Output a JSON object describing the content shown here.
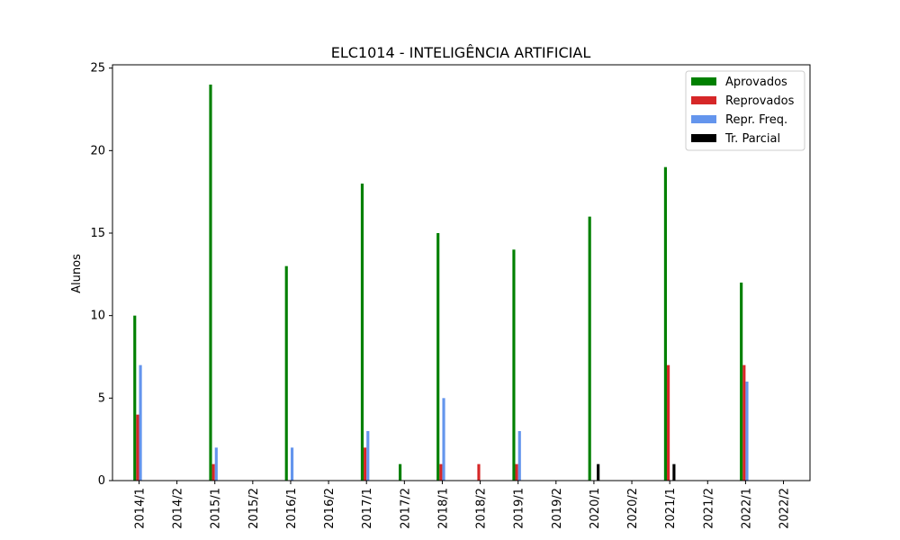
{
  "chart_data": {
    "type": "bar",
    "title": "ELC1014 - INTELIGÊNCIA ARTIFICIAL",
    "xlabel": "",
    "ylabel": "Alunos",
    "ylim": [
      0,
      25
    ],
    "yticks": [
      0,
      5,
      10,
      15,
      20,
      25
    ],
    "grid": false,
    "legend_position": "top-right",
    "categories": [
      "2014/1",
      "2014/2",
      "2015/1",
      "2015/2",
      "2016/1",
      "2016/2",
      "2017/1",
      "2017/2",
      "2018/1",
      "2018/2",
      "2019/1",
      "2019/2",
      "2020/1",
      "2020/2",
      "2021/1",
      "2021/2",
      "2022/1",
      "2022/2"
    ],
    "series": [
      {
        "name": "Aprovados",
        "color": "#008000",
        "values": [
          10,
          0,
          24,
          0,
          13,
          0,
          18,
          1,
          15,
          0,
          14,
          0,
          16,
          0,
          19,
          0,
          12,
          0
        ]
      },
      {
        "name": "Reprovados",
        "color": "#d62728",
        "values": [
          4,
          0,
          1,
          0,
          0,
          0,
          2,
          0,
          1,
          1,
          1,
          0,
          0,
          0,
          7,
          0,
          7,
          0
        ]
      },
      {
        "name": "Repr. Freq.",
        "color": "#6495ed",
        "values": [
          7,
          0,
          2,
          0,
          2,
          0,
          3,
          0,
          5,
          0,
          3,
          0,
          0,
          0,
          0,
          0,
          6,
          0
        ]
      },
      {
        "name": "Tr. Parcial",
        "color": "#000000",
        "values": [
          0,
          0,
          0,
          0,
          0,
          0,
          0,
          0,
          0,
          0,
          0,
          0,
          1,
          0,
          1,
          0,
          0,
          0
        ]
      }
    ]
  }
}
